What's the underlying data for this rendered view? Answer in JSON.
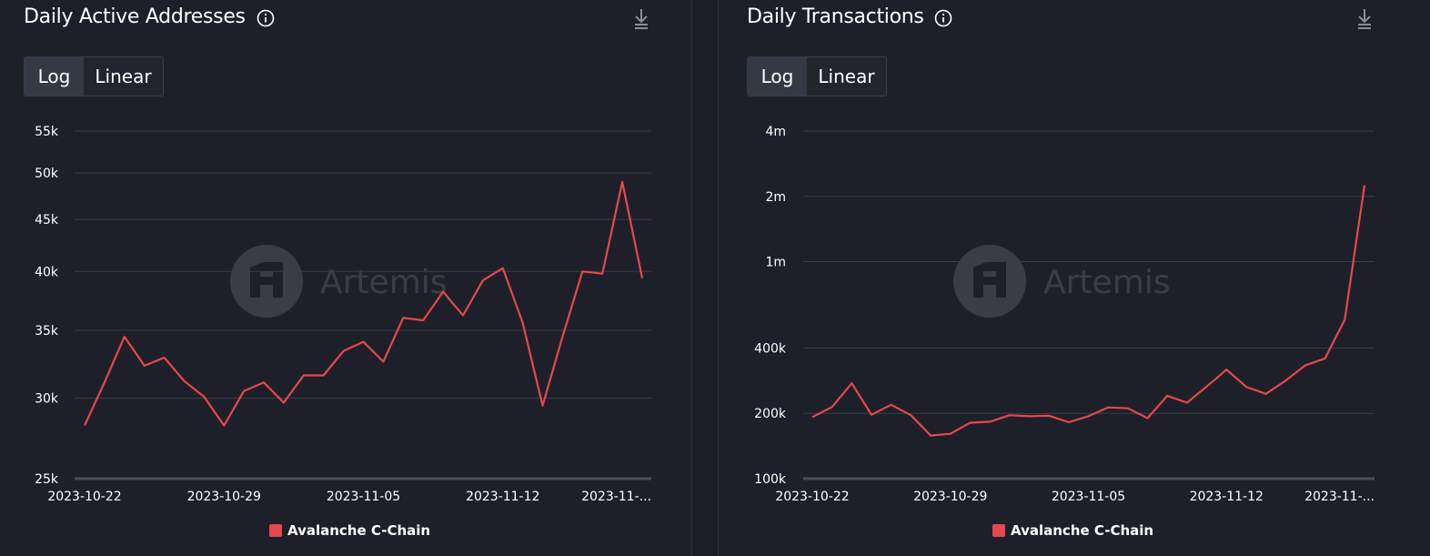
{
  "colors": {
    "line": "#e5484d",
    "grid": "#3a3d48",
    "text": "#ffffff",
    "background": "#1e2029"
  },
  "toggle": {
    "log_label": "Log",
    "linear_label": "Linear",
    "selected": "Log"
  },
  "watermark": "Artemis",
  "icons": {
    "info": "info-icon",
    "download": "download-icon"
  },
  "chart_data": [
    {
      "type": "line",
      "title": "Daily Active Addresses",
      "scale": "log",
      "ylim": [
        25000,
        55000
      ],
      "y_ticks": [
        25000,
        30000,
        35000,
        40000,
        45000,
        50000,
        55000
      ],
      "y_tick_labels": [
        "25k",
        "30k",
        "35k",
        "40k",
        "45k",
        "50k",
        "55k"
      ],
      "x_tick_labels": [
        "2023-10-22",
        "2023-10-29",
        "2023-11-05",
        "2023-11-12",
        "2023-11-..."
      ],
      "x_tick_indices": [
        0,
        7,
        14,
        21,
        27
      ],
      "legend": "Avalanche C-Chain",
      "grid": true,
      "series": [
        {
          "name": "Avalanche C-Chain",
          "values": [
            28200,
            31100,
            34500,
            32300,
            32900,
            31200,
            30100,
            28200,
            30500,
            31100,
            29700,
            31600,
            31600,
            33400,
            34100,
            32600,
            36000,
            35800,
            38200,
            36200,
            39200,
            40300,
            35600,
            29500,
            34500,
            40000,
            39800,
            49000,
            39400
          ]
        }
      ]
    },
    {
      "type": "line",
      "title": "Daily Transactions",
      "scale": "log",
      "ylim": [
        100000,
        4000000
      ],
      "y_ticks": [
        100000,
        200000,
        400000,
        1000000,
        2000000,
        4000000
      ],
      "y_tick_labels": [
        "100k",
        "200k",
        "400k",
        "1m",
        "2m",
        "4m"
      ],
      "x_tick_labels": [
        "2023-10-22",
        "2023-10-29",
        "2023-11-05",
        "2023-11-12",
        "2023-11-..."
      ],
      "x_tick_indices": [
        0,
        7,
        14,
        21,
        27
      ],
      "legend": "Avalanche C-Chain",
      "grid": true,
      "series": [
        {
          "name": "Avalanche C-Chain",
          "values": [
            192000,
            214000,
            275000,
            197000,
            219000,
            196000,
            158000,
            161000,
            181000,
            183000,
            196000,
            194000,
            195000,
            182000,
            194000,
            213000,
            211000,
            190000,
            241000,
            224000,
            266000,
            318000,
            265000,
            246000,
            283000,
            333000,
            358000,
            540000,
            2250000
          ]
        }
      ]
    }
  ]
}
